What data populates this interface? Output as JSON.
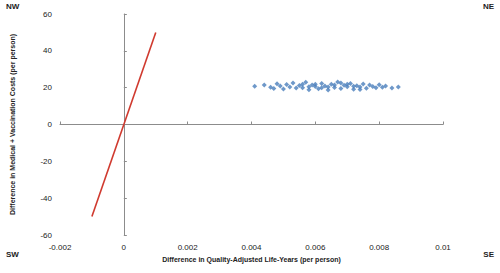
{
  "chart_data": {
    "type": "scatter",
    "xlabel": "Difference in Quality-Adjusted Life-Years (per person)",
    "ylabel": "Difference in Medical + Vaccination Costs (per person)",
    "annotations": [
      "NW",
      "NE",
      "SW",
      "SE"
    ],
    "xlim": [
      -0.002,
      0.01
    ],
    "xticks": [
      -0.002,
      0,
      0.002,
      0.004,
      0.006,
      0.008,
      0.01
    ],
    "ylim": [
      -60,
      60
    ],
    "yticks": [
      -60,
      -40,
      -20,
      0,
      20,
      40,
      60
    ],
    "grid": false,
    "series": [
      {
        "type": "scatter",
        "color": "#4a7ebb",
        "marker": "diamond",
        "x": [
          0.0041,
          0.0044,
          0.0046,
          0.0047,
          0.0048,
          0.0049,
          0.005,
          0.0051,
          0.0052,
          0.0053,
          0.0054,
          0.0055,
          0.0056,
          0.0057,
          0.0058,
          0.0059,
          0.006,
          0.0061,
          0.0062,
          0.0063,
          0.0064,
          0.0065,
          0.0066,
          0.0067,
          0.0068,
          0.0069,
          0.007,
          0.0071,
          0.0072,
          0.0073,
          0.0074,
          0.0075,
          0.0076,
          0.0077,
          0.0078,
          0.0079,
          0.008,
          0.0081,
          0.0082,
          0.0084,
          0.0086,
          0.0058,
          0.0062,
          0.0066,
          0.007,
          0.0064,
          0.006,
          0.0072,
          0.0056,
          0.0068,
          0.0074
        ],
        "values": [
          20.8,
          21.5,
          20.2,
          19.6,
          22.1,
          20.9,
          19.3,
          21.7,
          20.4,
          22.6,
          19.8,
          21.2,
          20,
          22.9,
          18.9,
          21.5,
          20.6,
          19.4,
          22.3,
          20.9,
          18.7,
          21.8,
          20.1,
          23.1,
          19.5,
          21.3,
          20.5,
          22.2,
          19.2,
          21,
          20.3,
          22,
          19.7,
          21.4,
          20.6,
          19.9,
          21.6,
          20.2,
          20.9,
          19.8,
          20.4,
          20.5,
          19.9,
          21.4,
          21.9,
          20.4,
          21.8,
          20.8,
          21.9,
          22.5,
          19
        ]
      },
      {
        "type": "line",
        "color": "#d03a2f",
        "line_style": "solid",
        "x": [
          -0.001,
          0.001
        ],
        "values": [
          -50,
          50
        ]
      }
    ]
  }
}
